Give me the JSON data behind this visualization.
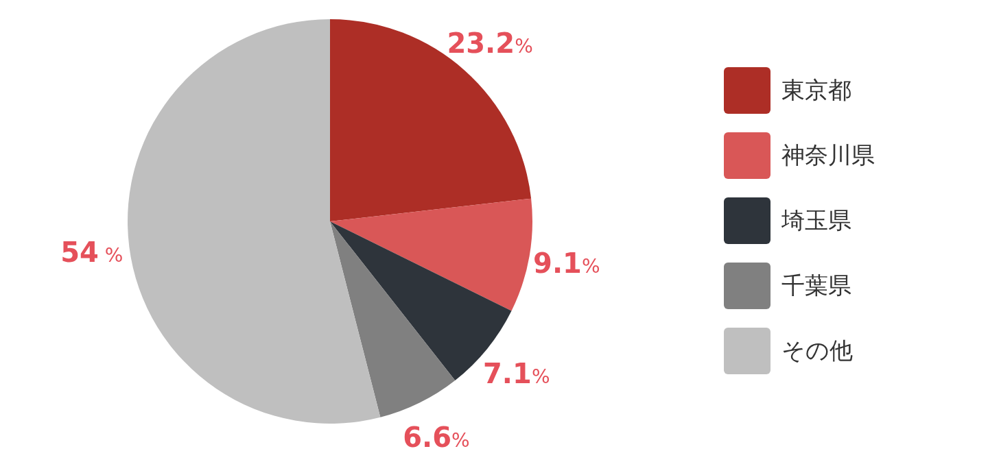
{
  "chart_data": {
    "type": "pie",
    "categories": [
      "東京都",
      "神奈川県",
      "埼玉県",
      "千葉県",
      "その他"
    ],
    "values": [
      23.2,
      9.1,
      7.1,
      6.6,
      54
    ],
    "colors": [
      "#ad2e26",
      "#d95757",
      "#2e343b",
      "#808080",
      "#bfbfbf"
    ],
    "value_labels": [
      "23.2%",
      "9.1%",
      "7.1%",
      "6.6%",
      "54 %"
    ],
    "legend": "right"
  }
}
